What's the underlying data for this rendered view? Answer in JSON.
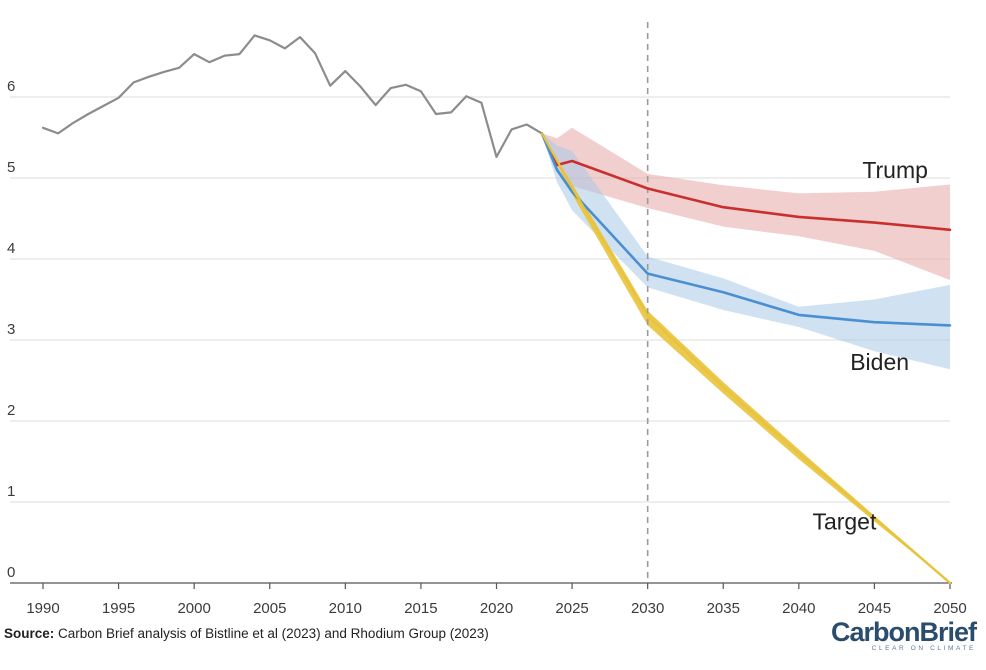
{
  "chart_data": {
    "type": "line",
    "title": "",
    "xlabel": "",
    "ylabel": "",
    "xlim": [
      1990,
      2050
    ],
    "ylim": [
      0,
      7
    ],
    "x_ticks": [
      1990,
      1995,
      2000,
      2005,
      2010,
      2015,
      2020,
      2025,
      2030,
      2035,
      2040,
      2045,
      2050
    ],
    "y_ticks": [
      0,
      1,
      2,
      3,
      4,
      5,
      6
    ],
    "grid": "horizontal",
    "vline_x": 2030,
    "series": [
      {
        "key": "historical",
        "color": "#8c8c8c",
        "points": [
          [
            1990,
            5.62
          ],
          [
            1991,
            5.55
          ],
          [
            1992,
            5.68
          ],
          [
            1993,
            5.79
          ],
          [
            1994,
            5.89
          ],
          [
            1995,
            5.99
          ],
          [
            1996,
            6.18
          ],
          [
            1997,
            6.25
          ],
          [
            1998,
            6.31
          ],
          [
            1999,
            6.36
          ],
          [
            2000,
            6.53
          ],
          [
            2001,
            6.43
          ],
          [
            2002,
            6.51
          ],
          [
            2003,
            6.53
          ],
          [
            2004,
            6.76
          ],
          [
            2005,
            6.7
          ],
          [
            2006,
            6.6
          ],
          [
            2007,
            6.74
          ],
          [
            2008,
            6.54
          ],
          [
            2009,
            6.14
          ],
          [
            2010,
            6.32
          ],
          [
            2011,
            6.13
          ],
          [
            2012,
            5.9
          ],
          [
            2013,
            6.11
          ],
          [
            2014,
            6.15
          ],
          [
            2015,
            6.07
          ],
          [
            2016,
            5.79
          ],
          [
            2017,
            5.81
          ],
          [
            2018,
            6.01
          ],
          [
            2019,
            5.93
          ],
          [
            2020,
            5.26
          ],
          [
            2021,
            5.6
          ],
          [
            2022,
            5.66
          ],
          [
            2023,
            5.55
          ]
        ]
      },
      {
        "key": "trump",
        "name": "Trump",
        "color": "#c8302f",
        "band_color": "#e6a8a5",
        "points": [
          [
            2023,
            5.55
          ],
          [
            2024,
            5.16
          ],
          [
            2025,
            5.21
          ],
          [
            2030,
            4.87
          ],
          [
            2035,
            4.64
          ],
          [
            2040,
            4.52
          ],
          [
            2045,
            4.45
          ],
          [
            2050,
            4.36
          ]
        ],
        "upper": [
          [
            2023,
            5.55
          ],
          [
            2024,
            5.49
          ],
          [
            2025,
            5.62
          ],
          [
            2030,
            5.05
          ],
          [
            2035,
            4.91
          ],
          [
            2040,
            4.81
          ],
          [
            2045,
            4.83
          ],
          [
            2050,
            4.92
          ]
        ],
        "lower": [
          [
            2023,
            5.55
          ],
          [
            2024,
            5.1
          ],
          [
            2025,
            4.9
          ],
          [
            2030,
            4.63
          ],
          [
            2035,
            4.4
          ],
          [
            2040,
            4.28
          ],
          [
            2045,
            4.1
          ],
          [
            2050,
            3.74
          ]
        ]
      },
      {
        "key": "biden",
        "name": "Biden",
        "color": "#4a8fd1",
        "band_color": "#a9c9e8",
        "points": [
          [
            2023,
            5.55
          ],
          [
            2024,
            5.1
          ],
          [
            2025,
            4.83
          ],
          [
            2030,
            3.82
          ],
          [
            2035,
            3.59
          ],
          [
            2040,
            3.31
          ],
          [
            2045,
            3.22
          ],
          [
            2050,
            3.18
          ]
        ],
        "upper": [
          [
            2023,
            5.55
          ],
          [
            2024,
            5.4
          ],
          [
            2025,
            5.33
          ],
          [
            2030,
            4.03
          ],
          [
            2035,
            3.76
          ],
          [
            2040,
            3.41
          ],
          [
            2045,
            3.5
          ],
          [
            2050,
            3.68
          ]
        ],
        "lower": [
          [
            2023,
            5.55
          ],
          [
            2024,
            4.95
          ],
          [
            2025,
            4.6
          ],
          [
            2030,
            3.65
          ],
          [
            2035,
            3.37
          ],
          [
            2040,
            3.16
          ],
          [
            2045,
            2.86
          ],
          [
            2050,
            2.64
          ]
        ]
      },
      {
        "key": "target",
        "name": "Target",
        "color": "#e8c33b",
        "band_color": "#e8c33b",
        "points": [
          [
            2023,
            5.55
          ],
          [
            2025,
            4.88
          ],
          [
            2030,
            3.3
          ],
          [
            2035,
            2.42
          ],
          [
            2040,
            1.6
          ],
          [
            2045,
            0.8
          ],
          [
            2050,
            0.0
          ]
        ],
        "upper": [
          [
            2023,
            5.55
          ],
          [
            2025,
            4.93
          ],
          [
            2030,
            3.36
          ],
          [
            2035,
            2.48
          ],
          [
            2040,
            1.65
          ],
          [
            2045,
            0.83
          ],
          [
            2050,
            0.02
          ]
        ],
        "lower": [
          [
            2023,
            5.55
          ],
          [
            2025,
            4.8
          ],
          [
            2030,
            3.18
          ],
          [
            2035,
            2.34
          ],
          [
            2040,
            1.53
          ],
          [
            2045,
            0.76
          ],
          [
            2050,
            0.0
          ]
        ]
      }
    ],
    "series_labels": [
      {
        "key": "trump",
        "text": "Trump",
        "x": 2044.2,
        "y": 5.0
      },
      {
        "key": "biden",
        "text": "Biden",
        "x": 2043.4,
        "y": 2.63
      },
      {
        "key": "target",
        "text": "Target",
        "x": 2040.9,
        "y": 0.66
      }
    ]
  },
  "footer": {
    "source_label": "Source:",
    "source_text": " Carbon Brief analysis of Bistline et al (2023) and Rhodium Group (2023)"
  },
  "logo": {
    "name": "CarbonBrief",
    "tagline": "CLEAR ON CLIMATE",
    "color": "#2a4d6e"
  }
}
